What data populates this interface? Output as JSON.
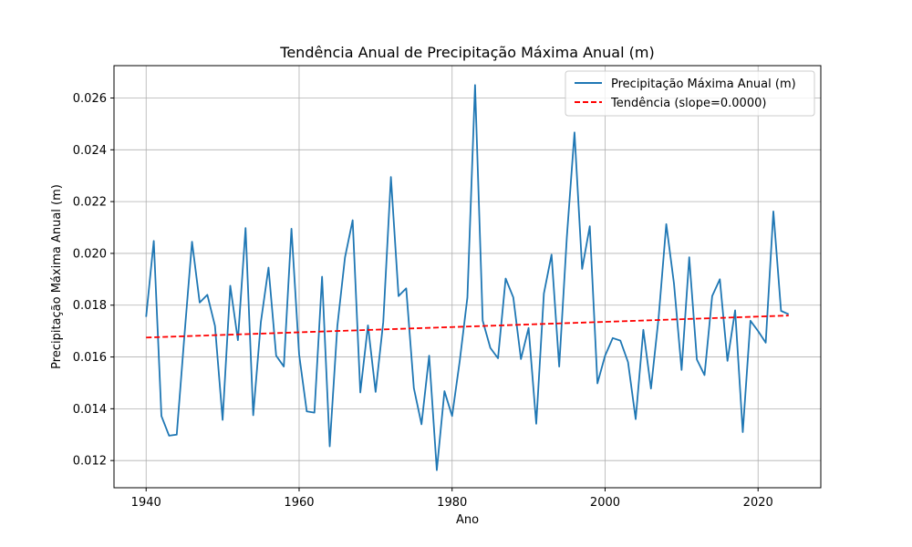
{
  "chart_data": {
    "type": "line",
    "title": "Tendência Anual de Precipitação Máxima Anual (m)",
    "xlabel": "Ano",
    "ylabel": "Precipitação Máxima Anual (m)",
    "xlim": [
      1935.8,
      2028.2
    ],
    "ylim": [
      0.01095,
      0.02725
    ],
    "xticks": [
      1940,
      1960,
      1980,
      2000,
      2020
    ],
    "yticks": [
      0.012,
      0.014,
      0.016,
      0.018,
      0.02,
      0.022,
      0.024,
      0.026
    ],
    "ytick_labels": [
      "0.012",
      "0.014",
      "0.016",
      "0.018",
      "0.020",
      "0.022",
      "0.024",
      "0.026"
    ],
    "grid": true,
    "legend_position": "top-right",
    "series": [
      {
        "name": "Precipitação Máxima Anual (m)",
        "color": "#1f77b4",
        "style": "solid",
        "x": [
          1940,
          1941,
          1942,
          1943,
          1944,
          1945,
          1946,
          1947,
          1948,
          1949,
          1950,
          1951,
          1952,
          1953,
          1954,
          1955,
          1956,
          1957,
          1958,
          1959,
          1960,
          1961,
          1962,
          1963,
          1964,
          1965,
          1966,
          1967,
          1968,
          1969,
          1970,
          1971,
          1972,
          1973,
          1974,
          1975,
          1976,
          1977,
          1978,
          1979,
          1980,
          1981,
          1982,
          1983,
          1984,
          1985,
          1986,
          1987,
          1988,
          1989,
          1990,
          1991,
          1992,
          1993,
          1994,
          1995,
          1996,
          1997,
          1998,
          1999,
          2000,
          2001,
          2002,
          2003,
          2004,
          2005,
          2006,
          2007,
          2008,
          2009,
          2010,
          2011,
          2012,
          2013,
          2014,
          2015,
          2016,
          2017,
          2018,
          2019,
          2020,
          2021,
          2022,
          2023,
          2024
        ],
        "y": [
          0.01755,
          0.02048,
          0.01372,
          0.01296,
          0.013,
          0.0168,
          0.02045,
          0.0181,
          0.0184,
          0.0172,
          0.01357,
          0.01875,
          0.01665,
          0.02098,
          0.01375,
          0.01735,
          0.01945,
          0.01605,
          0.01563,
          0.02095,
          0.0161,
          0.0139,
          0.01385,
          0.0191,
          0.01255,
          0.0172,
          0.01985,
          0.02128,
          0.01463,
          0.01722,
          0.01465,
          0.01735,
          0.02295,
          0.01835,
          0.01865,
          0.0148,
          0.0134,
          0.01605,
          0.01163,
          0.01468,
          0.01372,
          0.01585,
          0.0183,
          0.0265,
          0.0174,
          0.01635,
          0.01595,
          0.01903,
          0.0183,
          0.01592,
          0.01712,
          0.01342,
          0.01845,
          0.01995,
          0.01563,
          0.02063,
          0.02467,
          0.0194,
          0.02105,
          0.01498,
          0.01605,
          0.01673,
          0.01663,
          0.0158,
          0.0136,
          0.01705,
          0.01478,
          0.01753,
          0.02113,
          0.01885,
          0.0155,
          0.01985,
          0.0159,
          0.0153,
          0.01835,
          0.019,
          0.01585,
          0.0178,
          0.0131,
          0.0174,
          0.017,
          0.01655,
          0.02162,
          0.01778,
          0.01765
        ]
      },
      {
        "name": "Tendência (slope=0.0000)",
        "color": "#ff0000",
        "style": "dashed",
        "x": [
          1940,
          2024
        ],
        "y": [
          0.01675,
          0.0176
        ]
      }
    ]
  }
}
